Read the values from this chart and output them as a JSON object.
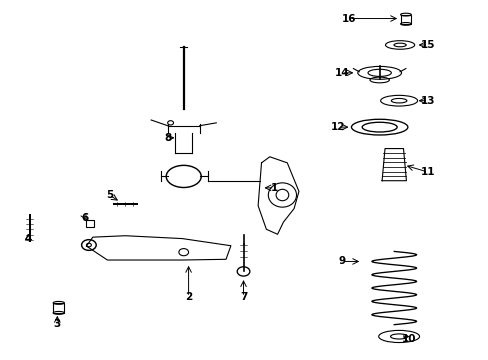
{
  "bg_color": "#ffffff",
  "line_color": "#000000",
  "fig_width": 4.89,
  "fig_height": 3.6,
  "dpi": 100,
  "arrows": [
    {
      "num": "1",
      "tpos": [
        0.562,
        0.478
      ],
      "apart": [
        0.535,
        0.478
      ]
    },
    {
      "num": "2",
      "tpos": [
        0.385,
        0.172
      ],
      "apart": [
        0.385,
        0.268
      ]
    },
    {
      "num": "3",
      "tpos": [
        0.115,
        0.098
      ],
      "apart": [
        0.115,
        0.128
      ]
    },
    {
      "num": "4",
      "tpos": [
        0.055,
        0.335
      ],
      "apart": [
        0.055,
        0.358
      ]
    },
    {
      "num": "5",
      "tpos": [
        0.222,
        0.458
      ],
      "apart": [
        0.245,
        0.438
      ]
    },
    {
      "num": "6",
      "tpos": [
        0.172,
        0.395
      ],
      "apart": [
        0.178,
        0.38
      ]
    },
    {
      "num": "7",
      "tpos": [
        0.498,
        0.172
      ],
      "apart": [
        0.498,
        0.228
      ]
    },
    {
      "num": "8",
      "tpos": [
        0.342,
        0.618
      ],
      "apart": [
        0.362,
        0.618
      ]
    },
    {
      "num": "9",
      "tpos": [
        0.7,
        0.272
      ],
      "apart": [
        0.742,
        0.272
      ]
    },
    {
      "num": "10",
      "tpos": [
        0.838,
        0.055
      ],
      "apart": [
        0.82,
        0.065
      ]
    },
    {
      "num": "11",
      "tpos": [
        0.878,
        0.522
      ],
      "apart": [
        0.828,
        0.542
      ]
    },
    {
      "num": "12",
      "tpos": [
        0.692,
        0.648
      ],
      "apart": [
        0.72,
        0.648
      ]
    },
    {
      "num": "13",
      "tpos": [
        0.878,
        0.722
      ],
      "apart": [
        0.852,
        0.722
      ]
    },
    {
      "num": "14",
      "tpos": [
        0.7,
        0.8
      ],
      "apart": [
        0.73,
        0.8
      ]
    },
    {
      "num": "15",
      "tpos": [
        0.878,
        0.878
      ],
      "apart": [
        0.852,
        0.878
      ]
    },
    {
      "num": "16",
      "tpos": [
        0.715,
        0.952
      ],
      "apart": [
        0.82,
        0.952
      ]
    }
  ]
}
